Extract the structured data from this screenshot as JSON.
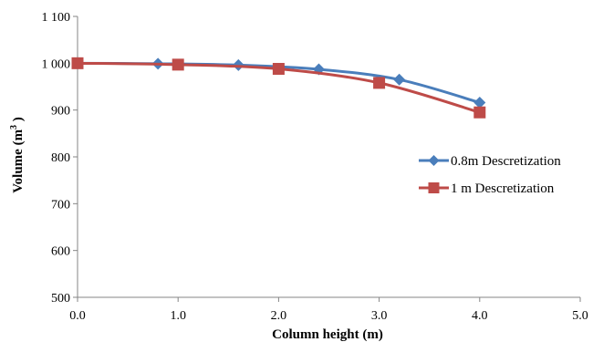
{
  "chart_data": {
    "type": "line",
    "title": "",
    "xlabel": "Column height (m)",
    "ylabel": {
      "prefix": "Volume (m",
      "sup": "3",
      "suffix": " )"
    },
    "xlim": [
      0,
      5
    ],
    "ylim": [
      500,
      1100
    ],
    "xticks": [
      "0.0",
      "1.0",
      "2.0",
      "3.0",
      "4.0",
      "5.0"
    ],
    "xtick_values": [
      0,
      1,
      2,
      3,
      4,
      5
    ],
    "yticks": [
      "500",
      "600",
      "700",
      "800",
      "900",
      "1 000",
      "1 100"
    ],
    "ytick_values": [
      500,
      600,
      700,
      800,
      900,
      1000,
      1100
    ],
    "grid": false,
    "legend_position": "right",
    "series": [
      {
        "name": "0.8m  Descretization",
        "color": "#4a7ebb",
        "marker": "diamond",
        "x": [
          0,
          0.8,
          1.6,
          2.4,
          3.2,
          4.0
        ],
        "y": [
          1000,
          999,
          996,
          987,
          965,
          916
        ]
      },
      {
        "name": "1 m Descretization",
        "color": "#be4b48",
        "marker": "square",
        "x": [
          0,
          1.0,
          2.0,
          3.0,
          4.0
        ],
        "y": [
          1000,
          997,
          988,
          958,
          895
        ]
      }
    ]
  }
}
